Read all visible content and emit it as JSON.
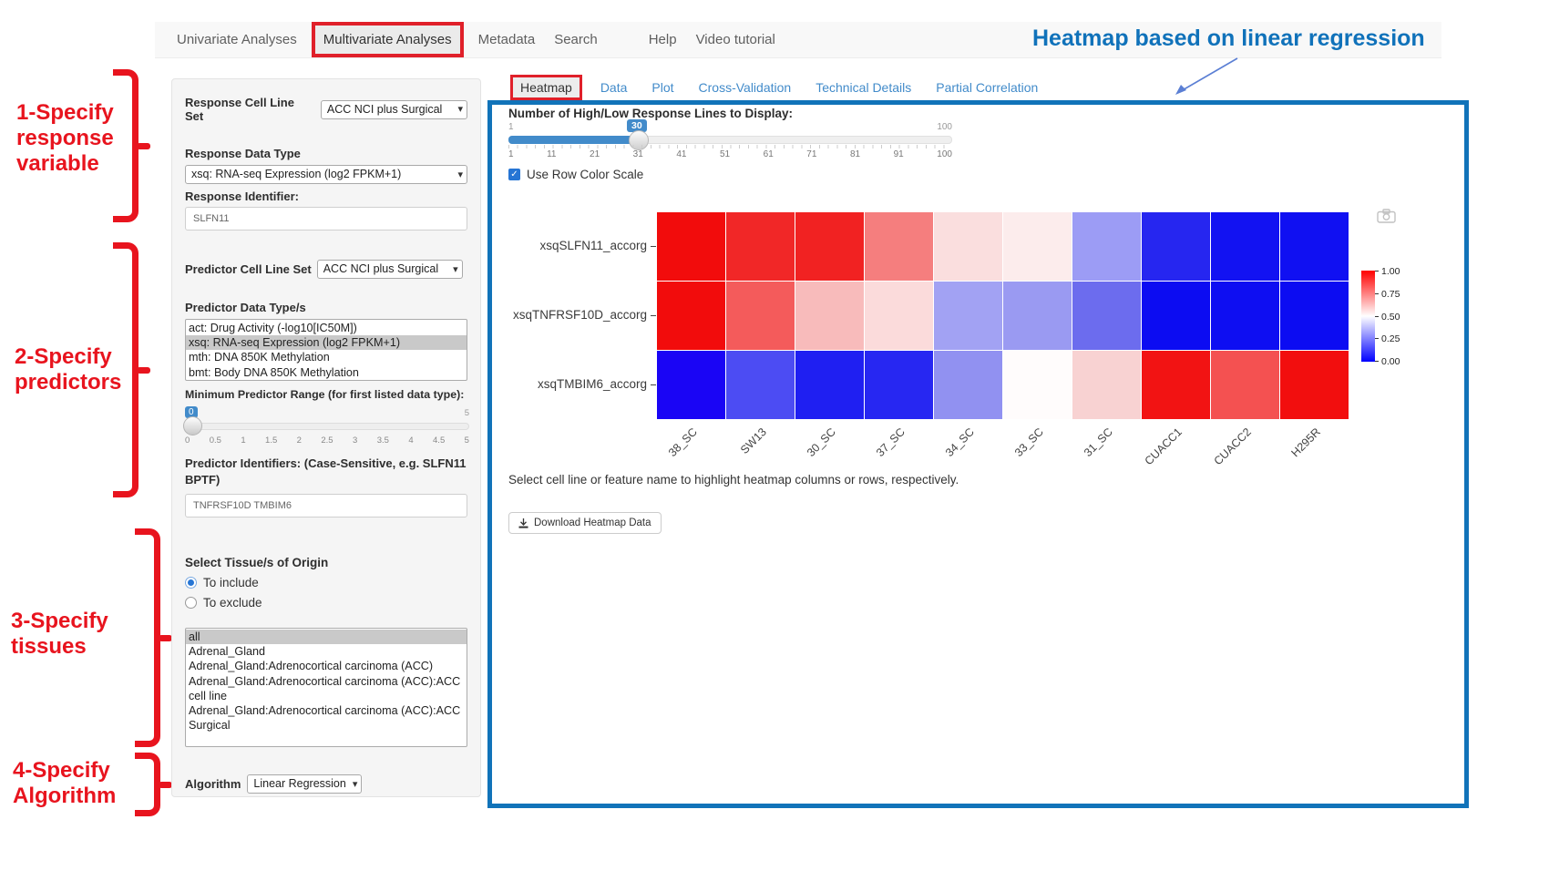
{
  "icons": {
    "chevron_down": "▾",
    "check": "✓"
  },
  "nav": {
    "items": [
      {
        "label": "Univariate Analyses",
        "active": false
      },
      {
        "label": "Multivariate Analyses",
        "active": true
      },
      {
        "label": "Metadata",
        "active": false
      },
      {
        "label": "Search",
        "active": false
      },
      {
        "label": "Help",
        "active": false
      },
      {
        "label": "Video tutorial",
        "active": false
      }
    ]
  },
  "annotations": {
    "title": "Heatmap based on linear regression",
    "title_color": "#1072ba",
    "step_color": "#e8141e",
    "steps": [
      {
        "lines": [
          "1-Specify",
          "response",
          "variable"
        ]
      },
      {
        "lines": [
          "2-Specify",
          "predictors"
        ]
      },
      {
        "lines": [
          "3-Specify",
          "tissues"
        ]
      },
      {
        "lines": [
          "4-Specify",
          "Algorithm"
        ]
      }
    ]
  },
  "sidebar": {
    "response": {
      "cell_line_set_label": "Response Cell Line Set",
      "cell_line_set_value": "ACC NCI plus Surgical",
      "data_type_label": "Response Data Type",
      "data_type_value": "xsq: RNA-seq Expression (log2 FPKM+1)",
      "identifier_label": "Response Identifier:",
      "identifier_value": "SLFN11"
    },
    "predictor": {
      "cell_line_set_label": "Predictor Cell Line Set",
      "cell_line_set_value": "ACC NCI plus Surgical",
      "data_types_label": "Predictor Data Type/s",
      "data_type_options": [
        {
          "label": "act: Drug Activity (-log10[IC50M])",
          "selected": false
        },
        {
          "label": "xsq: RNA-seq Expression (log2 FPKM+1)",
          "selected": true
        },
        {
          "label": "mth: DNA 850K Methylation",
          "selected": false
        },
        {
          "label": "bmt: Body DNA 850K Methylation",
          "selected": false
        }
      ],
      "min_range_label": "Minimum Predictor Range (for first listed data type):",
      "range_slider": {
        "value": "0",
        "max": "5",
        "ticks": [
          "0",
          "0.5",
          "1",
          "1.5",
          "2",
          "2.5",
          "3",
          "3.5",
          "4",
          "4.5",
          "5"
        ]
      },
      "identifiers_label": "Predictor Identifiers: (Case-Sensitive, e.g. SLFN11 BPTF)",
      "identifiers_value": "TNFRSF10D TMBIM6"
    },
    "tissue": {
      "label": "Select Tissue/s of Origin",
      "radios": [
        {
          "label": "To include",
          "selected": true
        },
        {
          "label": "To exclude",
          "selected": false
        }
      ],
      "options": [
        {
          "label": "all",
          "selected": true
        },
        {
          "label": "Adrenal_Gland",
          "selected": false
        },
        {
          "label": "Adrenal_Gland:Adrenocortical carcinoma (ACC)",
          "selected": false
        },
        {
          "label": "Adrenal_Gland:Adrenocortical carcinoma (ACC):ACC cell line",
          "selected": false
        },
        {
          "label": "Adrenal_Gland:Adrenocortical carcinoma (ACC):ACC Surgical",
          "selected": false
        }
      ]
    },
    "algorithm": {
      "label": "Algorithm",
      "value": "Linear Regression"
    }
  },
  "main": {
    "tabs": [
      {
        "label": "Heatmap",
        "active": true
      },
      {
        "label": "Data",
        "active": false
      },
      {
        "label": "Plot",
        "active": false
      },
      {
        "label": "Cross-Validation",
        "active": false
      },
      {
        "label": "Technical Details",
        "active": false
      },
      {
        "label": "Partial Correlation",
        "active": false
      }
    ],
    "lines_slider": {
      "label": "Number of High/Low Response Lines to Display:",
      "min": "1",
      "max": "100",
      "value": "30",
      "ticks": [
        "1",
        "11",
        "21",
        "31",
        "41",
        "51",
        "61",
        "71",
        "81",
        "91",
        "100"
      ]
    },
    "row_scale_checkbox": {
      "label": "Use Row Color Scale",
      "checked": true
    },
    "hint": "Select cell line or feature name to highlight heatmap columns or rows, respectively.",
    "download_label": "Download Heatmap Data",
    "accent_blue": "#428bca",
    "panel_border_blue": "#1173b9"
  },
  "chart_data": {
    "type": "heatmap",
    "title": "",
    "columns": [
      "38_SC",
      "SW13",
      "30_SC",
      "37_SC",
      "34_SC",
      "33_SC",
      "31_SC",
      "CUACC1",
      "CUACC2",
      "H295R"
    ],
    "rows": [
      "xsqSLFN11_accorg",
      "xsqTNFRSF10D_accorg",
      "xsqTMBIM6_accorg"
    ],
    "values": [
      [
        1.0,
        0.96,
        0.96,
        0.78,
        0.56,
        0.53,
        0.31,
        0.06,
        0.03,
        0.03
      ],
      [
        1.0,
        0.81,
        0.64,
        0.57,
        0.32,
        0.31,
        0.23,
        0.02,
        0.02,
        0.02
      ],
      [
        0.0,
        0.16,
        0.06,
        0.08,
        0.28,
        0.5,
        0.6,
        0.96,
        0.83,
        0.97
      ]
    ],
    "cell_colors": [
      [
        "#f20c0c",
        "#f12727",
        "#f12222",
        "#f57e7e",
        "#fadede",
        "#fcecec",
        "#9c9cf5",
        "#2626f0",
        "#1212f2",
        "#1010f2"
      ],
      [
        "#f20c0c",
        "#f45b5b",
        "#f8bbbb",
        "#fbdbdb",
        "#a2a2f3",
        "#9a9af2",
        "#6c6cee",
        "#0c0cf2",
        "#0e0ef2",
        "#0c0cf2"
      ],
      [
        "#1a05f5",
        "#4c4cf3",
        "#1f1ff2",
        "#2727f2",
        "#9191f1",
        "#fffcfc",
        "#f8d2d2",
        "#f21313",
        "#f45151",
        "#f20e0e"
      ]
    ],
    "colorbar": {
      "ticks": [
        "1.00",
        "0.75",
        "0.50",
        "0.25",
        "0.00"
      ],
      "top_color": "#ff0000",
      "mid_color": "#ffffff",
      "bottom_color": "#0000ff",
      "position": "right"
    },
    "grid": false,
    "legend_position": "right"
  }
}
